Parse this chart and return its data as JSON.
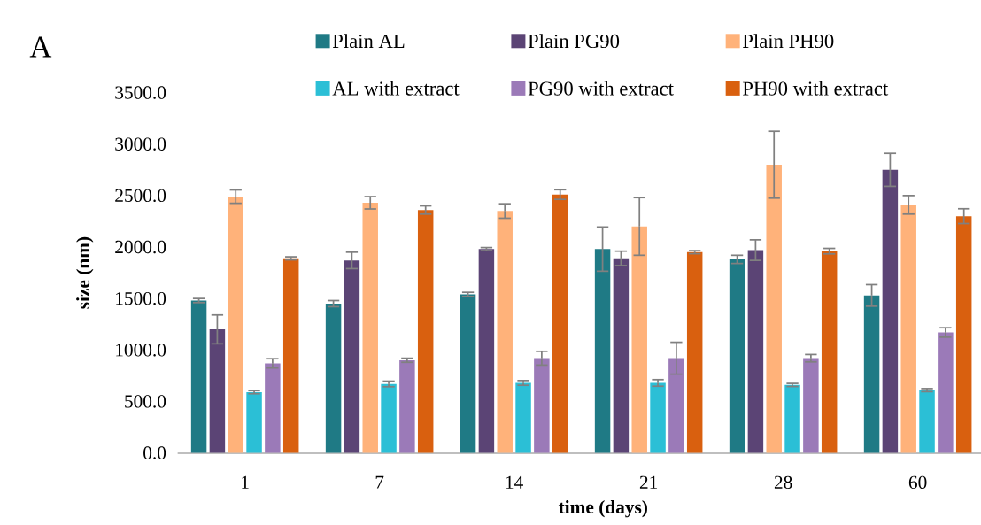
{
  "chart_data": {
    "type": "bar",
    "xlabel": "time (days)",
    "ylabel": "size (nm)",
    "annotations": [
      "A"
    ],
    "categories": [
      "1",
      "7",
      "14",
      "21",
      "28",
      "60"
    ],
    "ylim": [
      0,
      3500
    ],
    "yticks": [
      {
        "value": 0,
        "label": "0.0"
      },
      {
        "value": 500,
        "label": "500.0"
      },
      {
        "value": 1000,
        "label": "1000.0"
      },
      {
        "value": 1500,
        "label": "1500.0"
      },
      {
        "value": 2000,
        "label": "2000.0"
      },
      {
        "value": 2500,
        "label": "2500.0"
      },
      {
        "value": 3000,
        "label": "3000.0"
      },
      {
        "value": 3500,
        "label": "3500.0"
      }
    ],
    "legend": "top",
    "grid": false,
    "series": [
      {
        "name": "Plain AL",
        "color": "#1f7a85",
        "values": [
          1480,
          1450,
          1540,
          1980,
          1880,
          1530
        ],
        "errors": [
          20,
          30,
          20,
          215,
          40,
          105
        ]
      },
      {
        "name": "Plain PG90",
        "color": "#5b4475",
        "values": [
          1200,
          1870,
          1980,
          1890,
          1970,
          2750
        ],
        "errors": [
          140,
          80,
          15,
          70,
          100,
          160
        ]
      },
      {
        "name": "Plain PH90",
        "color": "#ffb27a",
        "values": [
          2490,
          2430,
          2350,
          2200,
          2800,
          2410
        ],
        "errors": [
          65,
          60,
          70,
          280,
          325,
          90
        ]
      },
      {
        "name": "AL with extract",
        "color": "#2bbfd6",
        "values": [
          590,
          670,
          680,
          680,
          660,
          610
        ],
        "errors": [
          15,
          27,
          23,
          32,
          15,
          15
        ]
      },
      {
        "name": "PG90 with extract",
        "color": "#9b7ab8",
        "values": [
          870,
          900,
          920,
          920,
          920,
          1170
        ],
        "errors": [
          45,
          20,
          67,
          155,
          36,
          46
        ]
      },
      {
        "name": "PH90 with extract",
        "color": "#d9600f",
        "values": [
          1890,
          2360,
          2510,
          1950,
          1960,
          2300
        ],
        "errors": [
          15,
          40,
          47,
          15,
          27,
          72
        ]
      }
    ]
  }
}
